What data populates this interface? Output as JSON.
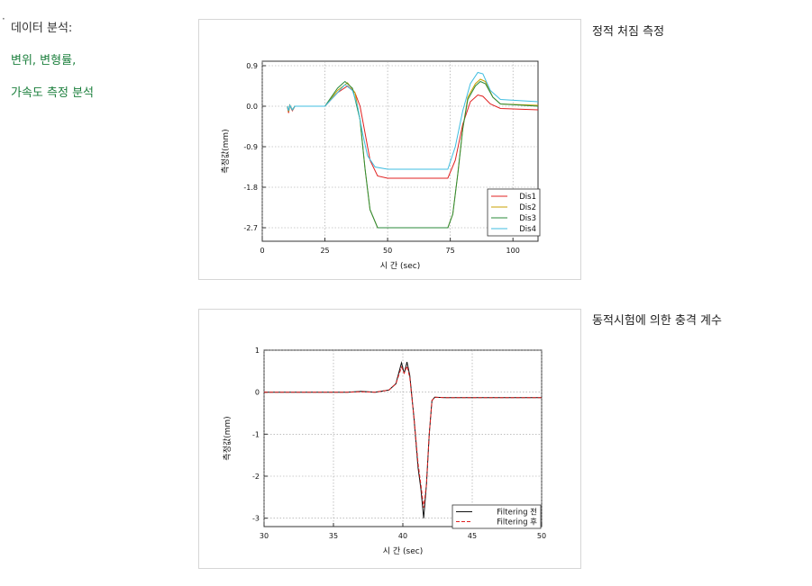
{
  "left_panel": {
    "bullet": "·",
    "heading": "데이터 분석:",
    "line1": "변위, 변형률,",
    "line2": "가속도 측정 분석"
  },
  "captions": {
    "chart1": "정적 처짐 측정",
    "chart2": "동적시험에 의한 충격 계수"
  },
  "chart_data": [
    {
      "type": "line",
      "xlabel": "시 간 (sec)",
      "ylabel": "측정값(mm)",
      "xlim": [
        0,
        110
      ],
      "ylim": [
        -3.0,
        1.0
      ],
      "xticks": [
        0,
        25,
        50,
        75,
        100
      ],
      "yticks": [
        0.9,
        0.0,
        -0.9,
        -1.8,
        -2.7
      ],
      "ytick_labels": [
        "0.9",
        "0.0",
        "-0.9",
        "-1.8",
        "-2.7"
      ],
      "grid": true,
      "legend_position": "bottom-right",
      "series": [
        {
          "name": "Dis1",
          "color": "#e02020",
          "points": [
            [
              10,
              0
            ],
            [
              10.5,
              -0.15
            ],
            [
              11,
              0.02
            ],
            [
              12,
              -0.1
            ],
            [
              13,
              0
            ],
            [
              25,
              0
            ],
            [
              30,
              0.3
            ],
            [
              34,
              0.45
            ],
            [
              37,
              0.3
            ],
            [
              39,
              0
            ],
            [
              41,
              -0.6
            ],
            [
              43,
              -1.2
            ],
            [
              46,
              -1.55
            ],
            [
              50,
              -1.6
            ],
            [
              74,
              -1.6
            ],
            [
              77,
              -1.2
            ],
            [
              80,
              -0.4
            ],
            [
              83,
              0.1
            ],
            [
              86,
              0.25
            ],
            [
              88,
              0.22
            ],
            [
              91,
              0.05
            ],
            [
              95,
              -0.05
            ],
            [
              110,
              -0.08
            ]
          ]
        },
        {
          "name": "Dis2",
          "color": "#c8a000",
          "points": [
            [
              10,
              0
            ],
            [
              10.5,
              -0.12
            ],
            [
              11,
              0.02
            ],
            [
              12,
              -0.08
            ],
            [
              13,
              0
            ],
            [
              25,
              0
            ],
            [
              30,
              0.35
            ],
            [
              34,
              0.52
            ],
            [
              37,
              0.3
            ],
            [
              39,
              -0.3
            ],
            [
              41,
              -1.4
            ],
            [
              43,
              -2.3
            ],
            [
              46,
              -2.7
            ],
            [
              74,
              -2.7
            ],
            [
              76,
              -2.4
            ],
            [
              78,
              -1.5
            ],
            [
              80,
              -0.5
            ],
            [
              82,
              0.2
            ],
            [
              85,
              0.5
            ],
            [
              87,
              0.6
            ],
            [
              89,
              0.55
            ],
            [
              92,
              0.2
            ],
            [
              95,
              0.05
            ],
            [
              110,
              0.02
            ]
          ]
        },
        {
          "name": "Dis3",
          "color": "#2a8a3a",
          "points": [
            [
              10,
              0
            ],
            [
              10.5,
              -0.1
            ],
            [
              11,
              0.02
            ],
            [
              12,
              -0.08
            ],
            [
              13,
              0
            ],
            [
              25,
              0
            ],
            [
              30,
              0.4
            ],
            [
              33,
              0.55
            ],
            [
              36,
              0.4
            ],
            [
              39,
              -0.3
            ],
            [
              41,
              -1.4
            ],
            [
              43,
              -2.3
            ],
            [
              46,
              -2.7
            ],
            [
              74,
              -2.7
            ],
            [
              76,
              -2.4
            ],
            [
              78,
              -1.5
            ],
            [
              80,
              -0.5
            ],
            [
              82,
              0.15
            ],
            [
              85,
              0.45
            ],
            [
              87,
              0.55
            ],
            [
              89,
              0.5
            ],
            [
              92,
              0.2
            ],
            [
              95,
              0.05
            ],
            [
              110,
              0.0
            ]
          ]
        },
        {
          "name": "Dis4",
          "color": "#3fbde0",
          "points": [
            [
              10,
              0
            ],
            [
              10.5,
              -0.1
            ],
            [
              11,
              0.02
            ],
            [
              12,
              -0.08
            ],
            [
              13,
              0
            ],
            [
              25,
              0
            ],
            [
              30,
              0.3
            ],
            [
              33,
              0.48
            ],
            [
              36,
              0.35
            ],
            [
              38,
              0
            ],
            [
              40,
              -0.6
            ],
            [
              42,
              -1.1
            ],
            [
              45,
              -1.35
            ],
            [
              50,
              -1.4
            ],
            [
              74,
              -1.4
            ],
            [
              77,
              -0.9
            ],
            [
              80,
              -0.1
            ],
            [
              83,
              0.5
            ],
            [
              86,
              0.75
            ],
            [
              88,
              0.72
            ],
            [
              91,
              0.35
            ],
            [
              95,
              0.15
            ],
            [
              110,
              0.1
            ]
          ]
        }
      ]
    },
    {
      "type": "line",
      "xlabel": "시 간 (sec)",
      "ylabel": "측정값(mm)",
      "xlim": [
        30,
        50
      ],
      "ylim": [
        -3.2,
        1.0
      ],
      "xticks": [
        30,
        35,
        40,
        45,
        50
      ],
      "yticks": [
        1,
        0,
        -1,
        -2,
        -3
      ],
      "grid": true,
      "legend_position": "bottom-right",
      "series": [
        {
          "name": "Filtering 전",
          "color": "#111111",
          "points": [
            [
              30,
              0
            ],
            [
              36,
              0
            ],
            [
              37,
              0.02
            ],
            [
              38,
              0
            ],
            [
              39,
              0.05
            ],
            [
              39.5,
              0.2
            ],
            [
              39.9,
              0.7
            ],
            [
              40.1,
              0.45
            ],
            [
              40.3,
              0.72
            ],
            [
              40.5,
              0.4
            ],
            [
              40.8,
              -0.6
            ],
            [
              41.1,
              -1.8
            ],
            [
              41.3,
              -2.3
            ],
            [
              41.5,
              -3.0
            ],
            [
              41.7,
              -2.2
            ],
            [
              41.9,
              -1.0
            ],
            [
              42.1,
              -0.2
            ],
            [
              42.3,
              -0.12
            ],
            [
              43,
              -0.13
            ],
            [
              50,
              -0.13
            ]
          ]
        },
        {
          "name": "Filtering 후",
          "color": "#e02020",
          "dashed": true,
          "points": [
            [
              30,
              0
            ],
            [
              36,
              0
            ],
            [
              37,
              0.01
            ],
            [
              38,
              0
            ],
            [
              39,
              0.05
            ],
            [
              39.5,
              0.2
            ],
            [
              39.9,
              0.6
            ],
            [
              40.1,
              0.45
            ],
            [
              40.3,
              0.62
            ],
            [
              40.5,
              0.35
            ],
            [
              40.8,
              -0.6
            ],
            [
              41.1,
              -1.7
            ],
            [
              41.3,
              -2.2
            ],
            [
              41.5,
              -2.75
            ],
            [
              41.7,
              -2.2
            ],
            [
              41.9,
              -1.0
            ],
            [
              42.1,
              -0.2
            ],
            [
              42.3,
              -0.12
            ],
            [
              43,
              -0.13
            ],
            [
              50,
              -0.13
            ]
          ]
        }
      ]
    }
  ]
}
